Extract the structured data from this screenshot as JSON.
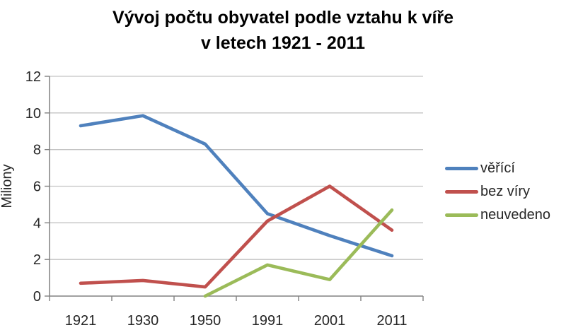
{
  "title": {
    "line1": "Vývoj počtu obyvatel podle vztahu k víře",
    "line2": "v letech 1921 - 2011"
  },
  "chart_data": {
    "type": "line",
    "title": "Vývoj počtu obyvatel podle vztahu k víře v letech 1921 - 2011",
    "xlabel": "",
    "ylabel": "Miliony",
    "categories": [
      "1921",
      "1930",
      "1950",
      "1991",
      "2001",
      "2011"
    ],
    "series": [
      {
        "name": "věřící",
        "color": "#4F81BD",
        "values": [
          9.3,
          9.85,
          8.3,
          4.5,
          3.3,
          2.2
        ]
      },
      {
        "name": "bez víry",
        "color": "#C0504D",
        "values": [
          0.7,
          0.85,
          0.5,
          4.1,
          6.0,
          3.6
        ]
      },
      {
        "name": "neuvedeno",
        "color": "#9BBB59",
        "values": [
          null,
          null,
          0,
          1.7,
          0.9,
          4.7
        ]
      }
    ],
    "ylim": [
      0,
      12
    ],
    "yticks": [
      0,
      2,
      4,
      6,
      8,
      10,
      12
    ],
    "grid": true,
    "legend_position": "right",
    "colors": {
      "axis": "#808080",
      "grid": "#C3C3C3",
      "tick_text": "#262626",
      "title_text": "#000000"
    }
  }
}
